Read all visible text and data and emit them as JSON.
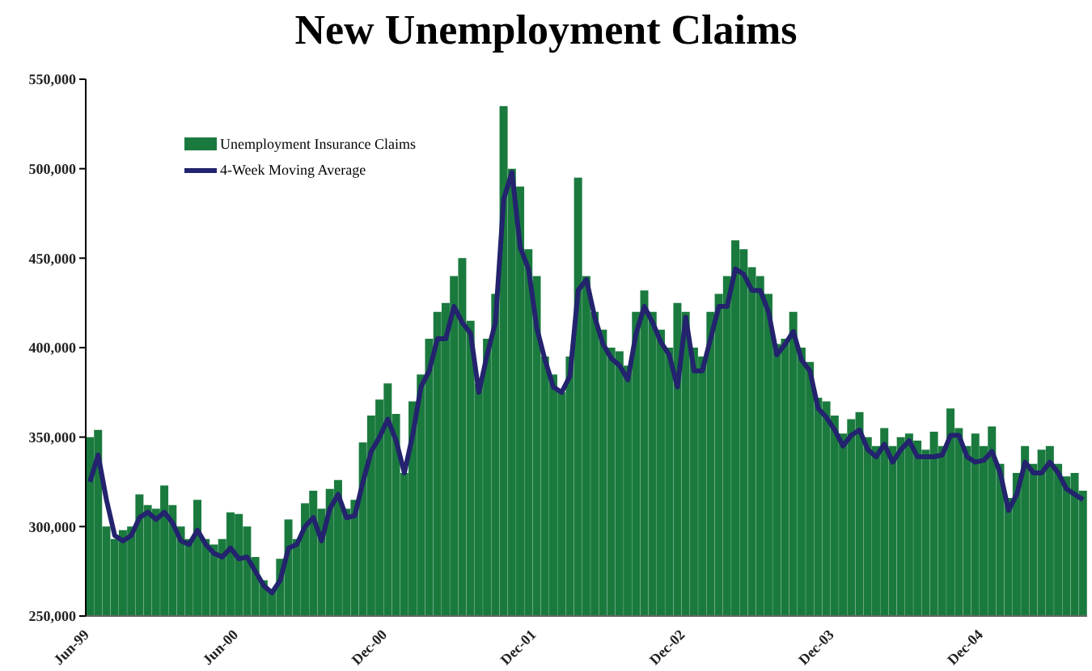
{
  "chart_data": {
    "type": "bar",
    "title": "New Unemployment Claims",
    "categories": [
      "Jun-99",
      null,
      null,
      null,
      null,
      null,
      null,
      null,
      null,
      null,
      null,
      null,
      null,
      null,
      null,
      null,
      null,
      null,
      "Jun-00",
      null,
      null,
      null,
      null,
      null,
      null,
      null,
      null,
      null,
      null,
      null,
      null,
      null,
      null,
      null,
      null,
      null,
      "Dec-00",
      null,
      null,
      null,
      null,
      null,
      null,
      null,
      null,
      null,
      null,
      null,
      null,
      null,
      null,
      null,
      null,
      null,
      "Dec-01",
      null,
      null,
      null,
      null,
      null,
      null,
      null,
      null,
      null,
      null,
      null,
      null,
      null,
      null,
      null,
      null,
      null,
      "Dec-02",
      null,
      null,
      null,
      null,
      null,
      null,
      null,
      null,
      null,
      null,
      null,
      null,
      null,
      null,
      null,
      null,
      null,
      "Dec-03",
      null,
      null,
      null,
      null,
      null,
      null,
      null,
      null,
      null,
      null,
      null,
      null,
      null,
      null,
      null,
      null,
      null,
      "Dec-04",
      null,
      null,
      null,
      null,
      null,
      null,
      null,
      null,
      null,
      null,
      null,
      null
    ],
    "series": [
      {
        "name": "Unemployment Insurance Claims",
        "color": "#1a7a3e",
        "values": [
          350000,
          354000,
          300000,
          293000,
          298000,
          300000,
          318000,
          312000,
          310000,
          323000,
          312000,
          300000,
          293000,
          315000,
          293000,
          290000,
          293000,
          308000,
          307000,
          300000,
          283000,
          270000,
          265000,
          282000,
          304000,
          293000,
          313000,
          320000,
          310000,
          321000,
          326000,
          310000,
          315000,
          347000,
          362000,
          371000,
          380000,
          363000,
          330000,
          370000,
          385000,
          405000,
          420000,
          425000,
          440000,
          450000,
          415000,
          380000,
          405000,
          430000,
          535000,
          500000,
          490000,
          455000,
          440000,
          395000,
          385000,
          375000,
          395000,
          495000,
          440000,
          420000,
          410000,
          400000,
          398000,
          390000,
          420000,
          432000,
          420000,
          410000,
          400000,
          425000,
          420000,
          400000,
          395000,
          420000,
          430000,
          440000,
          460000,
          455000,
          445000,
          440000,
          430000,
          402000,
          405000,
          420000,
          400000,
          392000,
          372000,
          370000,
          362000,
          352000,
          360000,
          364000,
          350000,
          345000,
          355000,
          345000,
          350000,
          352000,
          348000,
          343000,
          353000,
          345000,
          366000,
          355000,
          345000,
          352000,
          345000,
          356000,
          335000,
          316000,
          330000,
          345000,
          335000,
          343000,
          345000,
          335000,
          328000,
          330000,
          320000
        ]
      },
      {
        "name": "4-Week Moving Average",
        "type": "line",
        "color": "#23236e",
        "values": [
          325000,
          340000,
          315000,
          295000,
          292000,
          295000,
          305000,
          308000,
          304000,
          308000,
          302000,
          292000,
          290000,
          298000,
          290000,
          285000,
          283000,
          288000,
          282000,
          283000,
          275000,
          267000,
          263000,
          270000,
          288000,
          290000,
          300000,
          305000,
          292000,
          310000,
          318000,
          305000,
          306000,
          325000,
          342000,
          350000,
          360000,
          348000,
          330000,
          351000,
          378000,
          387000,
          405000,
          405000,
          423000,
          414000,
          408000,
          375000,
          396000,
          414000,
          483000,
          498000,
          456000,
          444000,
          411000,
          393000,
          378000,
          375000,
          384000,
          432000,
          438000,
          417000,
          402000,
          394000,
          390000,
          382000,
          408000,
          423000,
          414000,
          403000,
          396000,
          378000,
          417000,
          387000,
          387000,
          405000,
          423000,
          423000,
          444000,
          441000,
          432000,
          432000,
          420000,
          396000,
          402000,
          409000,
          393000,
          387000,
          366000,
          361000,
          354000,
          345000,
          351000,
          354000,
          343000,
          339000,
          346000,
          336000,
          343000,
          348000,
          339000,
          339000,
          339000,
          340000,
          351000,
          351000,
          339000,
          336000,
          337000,
          342000,
          330000,
          309000,
          318000,
          336000,
          330000,
          330000,
          336000,
          330000,
          321000,
          318000,
          315000
        ]
      }
    ],
    "ylim": [
      250000,
      550000
    ],
    "yticks": [
      {
        "value": 250000,
        "label": "250,000"
      },
      {
        "value": 300000,
        "label": "300,000"
      },
      {
        "value": 350000,
        "label": "350,000"
      },
      {
        "value": 400000,
        "label": "400,000"
      },
      {
        "value": 450000,
        "label": "450,000"
      },
      {
        "value": 500000,
        "label": "500,000"
      },
      {
        "value": 550000,
        "label": "550,000"
      }
    ],
    "legend": "top left",
    "marker": "none"
  }
}
